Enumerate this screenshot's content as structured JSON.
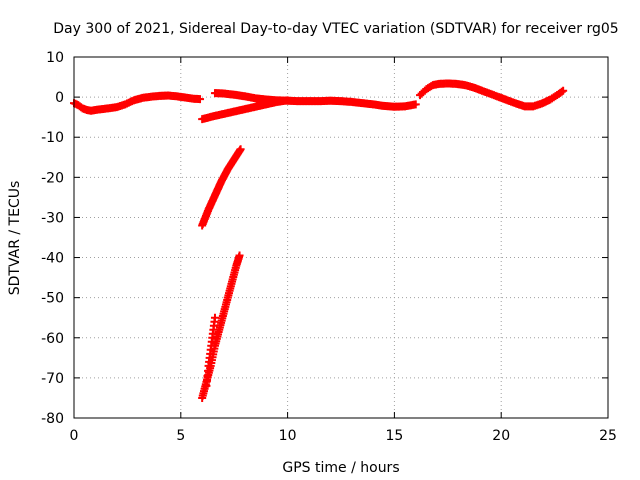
{
  "chart_data": {
    "type": "scatter",
    "title": "Day 300 of 2021, Sidereal Day-to-day VTEC variation (SDTVAR) for receiver rg05",
    "xlabel": "GPS time / hours",
    "ylabel": "SDTVAR / TECUs",
    "xlim": [
      0,
      25
    ],
    "ylim": [
      -80,
      10
    ],
    "xticks": [
      0,
      5,
      10,
      15,
      20,
      25
    ],
    "yticks": [
      10,
      0,
      -10,
      -20,
      -30,
      -40,
      -50,
      -60,
      -70,
      -80
    ],
    "grid": true,
    "marker": "plus",
    "color": "#ff0000",
    "series": [
      {
        "x": [
          0.0,
          0.2,
          0.4,
          0.6,
          0.8,
          1.0,
          1.3,
          1.6,
          2.0,
          2.4,
          2.8,
          3.2,
          3.6,
          4.0,
          4.4,
          4.8,
          5.2,
          5.6,
          5.9
        ],
        "y": [
          -1.5,
          -2.0,
          -2.8,
          -3.2,
          -3.4,
          -3.2,
          -3.0,
          -2.8,
          -2.5,
          -1.8,
          -0.8,
          -0.2,
          0.1,
          0.3,
          0.4,
          0.2,
          -0.1,
          -0.4,
          -0.5
        ]
      },
      {
        "x": [
          6.0,
          6.5,
          7.0,
          7.5,
          8.0,
          8.5,
          9.0,
          9.5,
          10.0
        ],
        "y": [
          -5.5,
          -4.8,
          -4.2,
          -3.6,
          -3.0,
          -2.4,
          -1.8,
          -1.2,
          -0.8
        ]
      },
      {
        "x": [
          6.6,
          7.0,
          7.5,
          8.0,
          8.5,
          9.0,
          9.5,
          10.0,
          10.5,
          11.0,
          11.5,
          12.0,
          12.5,
          13.0,
          13.5,
          14.0,
          14.5,
          15.0,
          15.5,
          16.0
        ],
        "y": [
          1.0,
          0.9,
          0.6,
          0.2,
          -0.3,
          -0.6,
          -0.8,
          -0.9,
          -1.0,
          -1.0,
          -1.0,
          -0.9,
          -1.0,
          -1.2,
          -1.5,
          -1.8,
          -2.2,
          -2.4,
          -2.3,
          -1.8
        ]
      },
      {
        "x": [
          16.2,
          16.5,
          16.8,
          17.1,
          17.5,
          17.9,
          18.3,
          18.7,
          19.1,
          19.5,
          19.9,
          20.3,
          20.7,
          21.1,
          21.5,
          21.9,
          22.3,
          22.7,
          22.9
        ],
        "y": [
          0.5,
          2.0,
          3.0,
          3.3,
          3.4,
          3.3,
          3.0,
          2.4,
          1.6,
          0.8,
          0.0,
          -0.8,
          -1.6,
          -2.3,
          -2.3,
          -1.6,
          -0.6,
          0.8,
          1.6
        ]
      },
      {
        "x": [
          6.0,
          6.3,
          6.6,
          6.9,
          7.2,
          7.5,
          7.8
        ],
        "y": [
          -32,
          -28,
          -24.5,
          -21,
          -18,
          -15.5,
          -13
        ]
      },
      {
        "x": [
          6.0,
          6.2,
          6.4,
          6.6,
          6.8,
          7.0,
          7.2,
          7.4,
          7.6,
          7.75
        ],
        "y": [
          -75,
          -71,
          -67,
          -62,
          -58,
          -54,
          -50,
          -46,
          -42,
          -39.5
        ]
      },
      {
        "x": [
          6.2,
          6.3,
          6.4,
          6.5,
          6.6
        ],
        "y": [
          -72,
          -67,
          -63,
          -59,
          -55
        ]
      }
    ]
  }
}
